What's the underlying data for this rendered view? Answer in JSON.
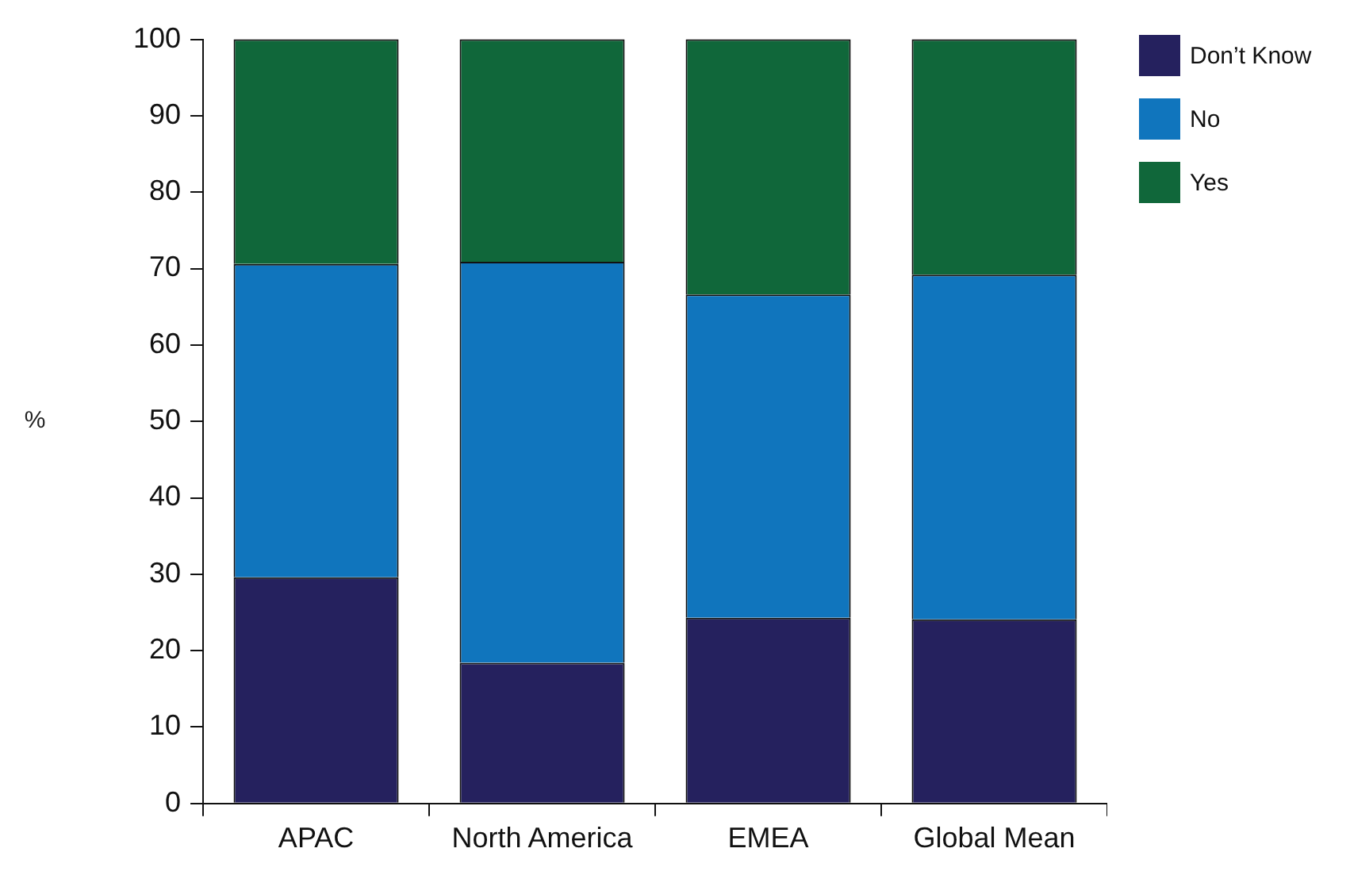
{
  "chart_data": {
    "type": "bar",
    "stacked": true,
    "ylabel": "%",
    "categories": [
      "APAC",
      "North America",
      "EMEA",
      "Global Mean"
    ],
    "series": [
      {
        "name": "Don’t Know",
        "color": "#25215e",
        "values": [
          29.6,
          18.4,
          24.3,
          24.1
        ]
      },
      {
        "name": "No",
        "color": "#1075bd",
        "values": [
          41.0,
          52.5,
          42.3,
          45.1
        ]
      },
      {
        "name": "Yes",
        "color": "#10673a",
        "values": [
          29.4,
          29.1,
          33.4,
          30.8
        ]
      }
    ],
    "ylim": [
      0,
      100
    ],
    "yticks": [
      0,
      10,
      20,
      30,
      40,
      50,
      60,
      70,
      80,
      90,
      100
    ],
    "grid": false,
    "legend": "top right"
  }
}
